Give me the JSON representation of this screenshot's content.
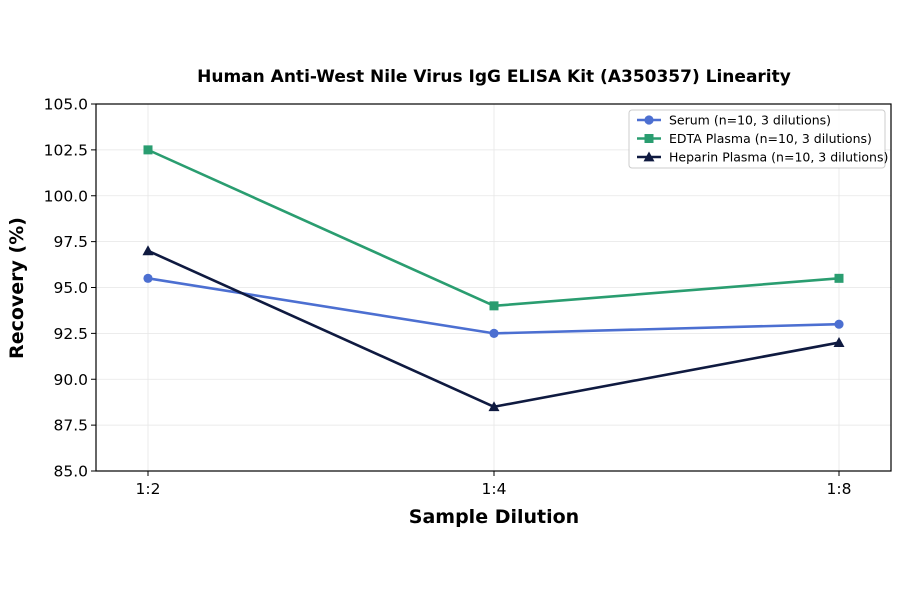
{
  "chart_data": {
    "type": "line",
    "title": "Human Anti-West Nile Virus IgG ELISA Kit (A350357) Linearity",
    "xlabel": "Sample Dilution",
    "ylabel": "Recovery (%)",
    "categories": [
      "1:2",
      "1:4",
      "1:8"
    ],
    "ylim": [
      85.0,
      105.0
    ],
    "yticks": [
      "85.0",
      "87.5",
      "90.0",
      "92.5",
      "95.0",
      "97.5",
      "100.0",
      "102.5",
      "105.0"
    ],
    "grid": true,
    "legend_position": "top-right",
    "series": [
      {
        "name": "Serum (n=10, 3 dilutions)",
        "values": [
          95.5,
          92.5,
          93.0
        ],
        "color": "#4c6fd1",
        "marker": "circle"
      },
      {
        "name": "EDTA Plasma (n=10, 3 dilutions)",
        "values": [
          102.5,
          94.0,
          95.5
        ],
        "color": "#2a9d70",
        "marker": "square"
      },
      {
        "name": "Heparin Plasma (n=10, 3 dilutions)",
        "values": [
          97.0,
          88.5,
          92.0
        ],
        "color": "#0f1a40",
        "marker": "triangle"
      }
    ]
  }
}
